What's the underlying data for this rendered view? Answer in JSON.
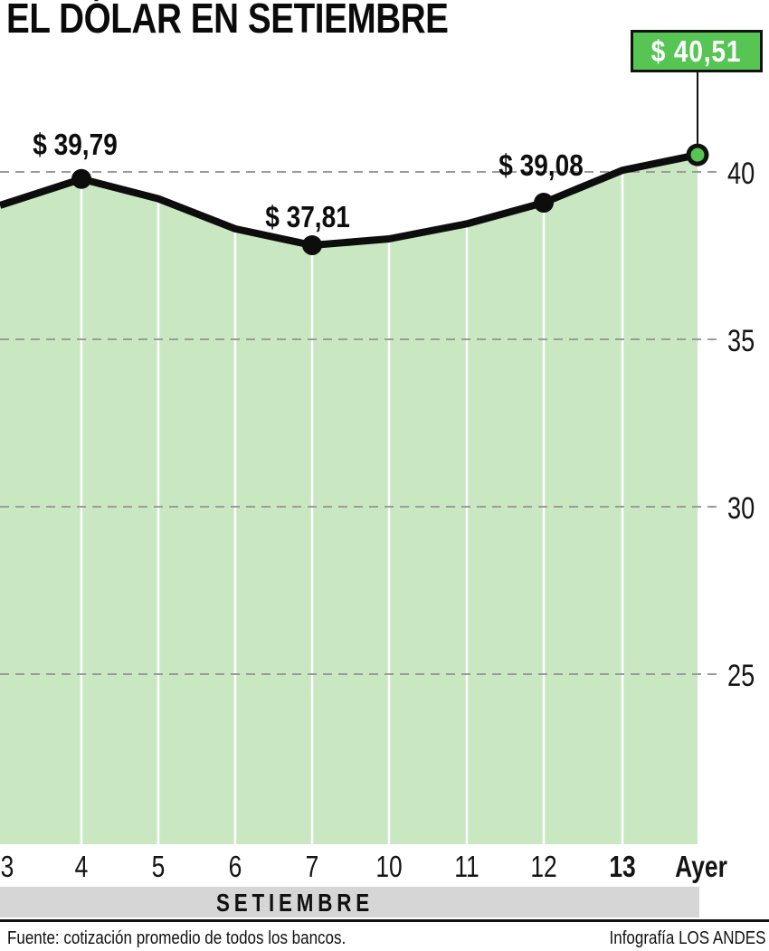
{
  "title": "EL DÓLAR EN SETIEMBRE",
  "colors": {
    "accent_green": "#57c553",
    "area_green": "#c9e8c2",
    "grid_gray": "#9b9b9b",
    "band_gray": "#d6d6d6",
    "line_black": "#0d0d0d"
  },
  "chart_data": {
    "type": "area",
    "title": "EL DÓLAR EN SETIEMBRE",
    "categories": [
      "3",
      "4",
      "5",
      "6",
      "7",
      "10",
      "11",
      "12",
      "13",
      "Ayer"
    ],
    "values": [
      39.0,
      39.79,
      39.2,
      38.3,
      37.81,
      38.0,
      38.45,
      39.08,
      40.05,
      40.51
    ],
    "labeled_points": [
      {
        "category": "4",
        "label": "$ 39,79"
      },
      {
        "category": "7",
        "label": "$ 37,81"
      },
      {
        "category": "12",
        "label": "$ 39,08"
      }
    ],
    "latest": {
      "category": "Ayer",
      "label": "$ 40,51",
      "value": 40.51
    },
    "emphasized_categories": [
      "13",
      "Ayer"
    ],
    "y_ticks": [
      40,
      35,
      30,
      25
    ],
    "ylim": [
      22.5,
      41.5
    ],
    "y_axis_side": "right",
    "grid": "dashed-horizontal",
    "legend": "none"
  },
  "band": {
    "label": "SETIEMBRE"
  },
  "footer": {
    "source": "Fuente: cotización promedio de todos los bancos.",
    "credit": "Infografía LOS ANDES"
  }
}
